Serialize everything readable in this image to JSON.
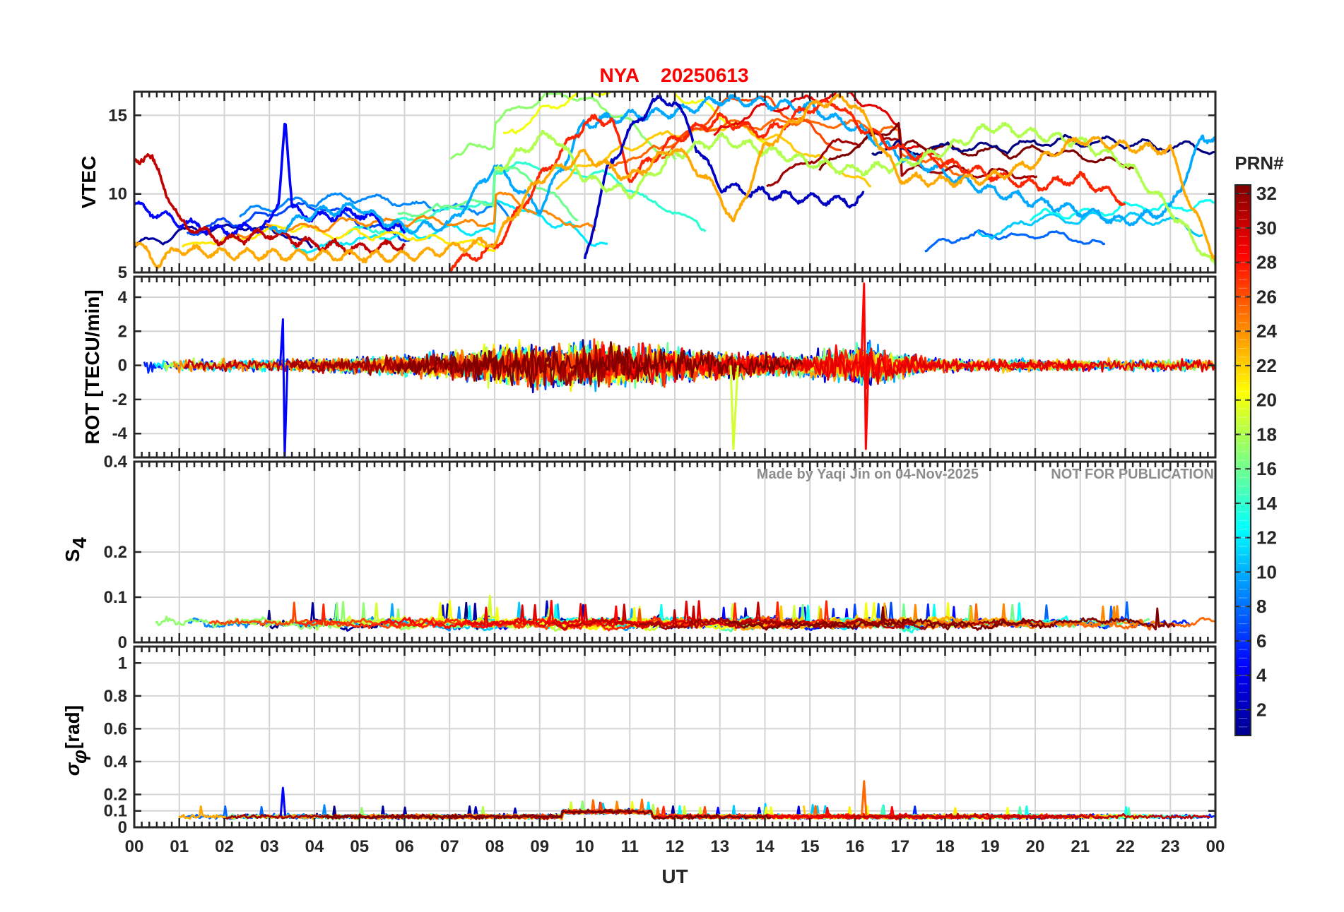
{
  "figure": {
    "title_station": "NYA",
    "title_date": "20250613",
    "xlabel": "UT",
    "credit": "Made by Yaqi Jin on 04-Nov-2025",
    "notice": "NOT FOR PUBLICATION"
  },
  "colorbar": {
    "label": "PRN#",
    "min": 1,
    "max": 32,
    "ticks": [
      "2",
      "4",
      "6",
      "8",
      "10",
      "12",
      "14",
      "16",
      "18",
      "20",
      "22",
      "24",
      "26",
      "28",
      "30",
      "32"
    ],
    "colormap": "jet"
  },
  "chart_data": [
    {
      "type": "line",
      "panel": "vtec",
      "ylabel": "VTEC",
      "ylim": [
        5,
        16.5
      ],
      "yticks": [
        "5",
        "10",
        "15"
      ],
      "yticks_values": [
        5,
        10,
        15
      ],
      "xlim": [
        0,
        24
      ],
      "xticks": [
        "00",
        "01",
        "02",
        "03",
        "04",
        "05",
        "06",
        "07",
        "08",
        "09",
        "10",
        "11",
        "12",
        "13",
        "14",
        "15",
        "16",
        "17",
        "18",
        "19",
        "20",
        "21",
        "22",
        "23",
        "00"
      ],
      "series_by_prn": "PRN 1-32 colored by colorbar",
      "representative_series": [
        {
          "name": "PRN 5",
          "x": [
            0,
            1,
            2,
            3,
            3.2,
            3.35,
            3.5,
            4,
            5,
            6
          ],
          "y": [
            9.3,
            8.2,
            7.6,
            8.0,
            9.5,
            14.8,
            9.0,
            8.5,
            8.8,
            7.5
          ]
        },
        {
          "name": "PRN 30",
          "x": [
            0,
            0.3,
            0.6,
            1,
            2,
            3,
            4,
            5,
            6
          ],
          "y": [
            12.2,
            12.5,
            11.0,
            8.2,
            7.0,
            7.5,
            6.8,
            6.5,
            6.8
          ]
        },
        {
          "name": "PRN 10",
          "x": [
            3,
            4,
            5,
            5.3,
            6,
            7,
            8,
            9,
            10,
            11,
            12,
            13,
            14,
            15,
            16,
            17,
            18,
            19,
            20,
            21,
            22,
            23,
            23.7,
            24
          ],
          "y": [
            7.5,
            8.8,
            9.2,
            8.6,
            7.8,
            8.0,
            11.8,
            9.0,
            14.5,
            15.0,
            15.2,
            16.0,
            15.8,
            15.5,
            14.2,
            12.5,
            11.3,
            10.2,
            9.5,
            8.9,
            8.2,
            9.0,
            13.5,
            13.7
          ]
        },
        {
          "name": "PRN 27",
          "x": [
            7,
            8,
            9,
            10,
            10.6,
            11,
            12,
            13,
            14,
            15,
            15.6,
            16,
            17,
            18,
            19,
            20,
            21,
            22
          ],
          "y": [
            5.5,
            6.5,
            11.0,
            14.5,
            14.8,
            11.0,
            13.5,
            14.8,
            13.8,
            15.5,
            15.8,
            14.5,
            12.8,
            12.0,
            11.2,
            10.5,
            11.0,
            9.5
          ]
        },
        {
          "name": "PRN 3",
          "x": [
            10,
            10.5,
            11,
            11.5,
            12,
            12.5,
            13,
            14,
            15,
            16,
            16.2
          ],
          "y": [
            5.8,
            11.5,
            14.0,
            15.8,
            16.0,
            13.0,
            10.5,
            10.0,
            9.7,
            9.5,
            9.8
          ]
        },
        {
          "name": "PRN 18",
          "x": [
            8,
            9,
            9.3,
            10,
            11,
            12,
            13,
            14,
            15,
            16,
            17,
            18,
            19,
            20,
            21,
            22,
            23,
            24
          ],
          "y": [
            11.5,
            13.5,
            13.8,
            11.0,
            10.0,
            12.5,
            13.5,
            12.8,
            12.0,
            11.5,
            11.8,
            12.8,
            14.3,
            13.8,
            13.3,
            12.0,
            9.0,
            5.3
          ]
        },
        {
          "name": "PRN 23",
          "x": [
            0,
            0.5,
            1,
            2,
            6,
            7,
            8,
            9,
            10,
            11,
            12,
            13,
            13.3,
            14,
            15,
            15.5,
            16,
            17,
            18,
            19,
            20,
            21,
            22,
            23,
            23.5,
            24
          ],
          "y": [
            7.0,
            5.6,
            6.5,
            6.2,
            6.0,
            6.5,
            7.0,
            11.0,
            12.5,
            11.0,
            13.0,
            10.0,
            8.0,
            13.0,
            15.5,
            16.0,
            15.8,
            11.0,
            10.8,
            11.0,
            12.0,
            13.5,
            13.0,
            12.8,
            9.0,
            6.0
          ]
        }
      ]
    },
    {
      "type": "line",
      "panel": "rot",
      "ylabel": "ROT [TECU/min]",
      "ylim": [
        -5.4,
        5.2
      ],
      "yticks": [
        "-4",
        "-2",
        "0",
        "2",
        "4"
      ],
      "yticks_values": [
        -4,
        -2,
        0,
        2,
        4
      ],
      "xlim": [
        0,
        24
      ],
      "notable_spikes": [
        {
          "name": "PRN 5",
          "x": 3.3,
          "y": [
            2.7,
            -5.4
          ]
        },
        {
          "name": "PRN 28",
          "x": 16.2,
          "y": [
            4.8,
            -4.9
          ]
        },
        {
          "name": "PRN 19",
          "x": 13.3,
          "y": [
            -4.9
          ]
        }
      ]
    },
    {
      "type": "line",
      "panel": "s4",
      "ylabel": "S4",
      "ylabel_main": "S",
      "ylabel_sub": "4",
      "ylim": [
        0,
        0.4
      ],
      "yticks": [
        "0",
        "0.1",
        "0.2",
        "0.4"
      ],
      "yticks_values": [
        0,
        0.1,
        0.2,
        0.4
      ],
      "xlim": [
        0,
        24
      ],
      "typical_range": [
        0.02,
        0.11
      ]
    },
    {
      "type": "line",
      "panel": "sigma_phi",
      "ylabel": "σφ [rad]",
      "ylabel_main": "σ",
      "ylabel_sub": "φ",
      "ylabel_unit": "[rad]",
      "ylim": [
        0,
        1.1
      ],
      "yticks": [
        "0",
        "0.1",
        "0.2",
        "0.4",
        "0.6",
        "0.8",
        "1"
      ],
      "yticks_values": [
        0,
        0.1,
        0.2,
        0.4,
        0.6,
        0.8,
        1
      ],
      "xlim": [
        0,
        24
      ],
      "notable_spikes": [
        {
          "name": "PRN 5",
          "x": 3.3,
          "y": 0.24
        },
        {
          "name": "PRN 25",
          "x": 16.2,
          "y": 0.28
        }
      ]
    }
  ]
}
